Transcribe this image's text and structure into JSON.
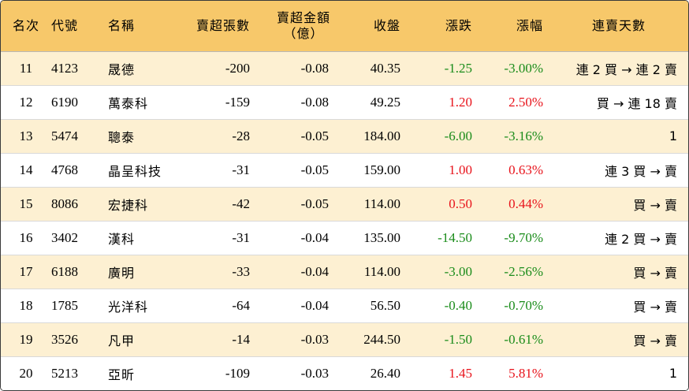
{
  "headers": {
    "rank": "名次",
    "code": "代號",
    "name": "名稱",
    "net_sell_lots": "賣超張數",
    "net_sell_amount_line1": "賣超金額",
    "net_sell_amount_line2": "（億）",
    "close": "收盤",
    "change": "漲跌",
    "change_pct": "漲幅",
    "streak": "連賣天數"
  },
  "rows": [
    {
      "rank": "11",
      "code": "4123",
      "name": "晟德",
      "lots": "-200",
      "amount": "-0.08",
      "close": "40.35",
      "change": "-1.25",
      "pct": "-3.00%",
      "dir": "down",
      "streak": "連 2 買 → 連 2 賣"
    },
    {
      "rank": "12",
      "code": "6190",
      "name": "萬泰科",
      "lots": "-159",
      "amount": "-0.08",
      "close": "49.25",
      "change": "1.20",
      "pct": "2.50%",
      "dir": "up",
      "streak": "買 → 連 18 賣"
    },
    {
      "rank": "13",
      "code": "5474",
      "name": "聰泰",
      "lots": "-28",
      "amount": "-0.05",
      "close": "184.00",
      "change": "-6.00",
      "pct": "-3.16%",
      "dir": "down",
      "streak": "1"
    },
    {
      "rank": "14",
      "code": "4768",
      "name": "晶呈科技",
      "lots": "-31",
      "amount": "-0.05",
      "close": "159.00",
      "change": "1.00",
      "pct": "0.63%",
      "dir": "up",
      "streak": "連 3 買 → 賣"
    },
    {
      "rank": "15",
      "code": "8086",
      "name": "宏捷科",
      "lots": "-42",
      "amount": "-0.05",
      "close": "114.00",
      "change": "0.50",
      "pct": "0.44%",
      "dir": "up",
      "streak": "買 → 賣"
    },
    {
      "rank": "16",
      "code": "3402",
      "name": "漢科",
      "lots": "-31",
      "amount": "-0.04",
      "close": "135.00",
      "change": "-14.50",
      "pct": "-9.70%",
      "dir": "down",
      "streak": "連 2 買 → 賣"
    },
    {
      "rank": "17",
      "code": "6188",
      "name": "廣明",
      "lots": "-33",
      "amount": "-0.04",
      "close": "114.00",
      "change": "-3.00",
      "pct": "-2.56%",
      "dir": "down",
      "streak": "買 → 賣"
    },
    {
      "rank": "18",
      "code": "1785",
      "name": "光洋科",
      "lots": "-64",
      "amount": "-0.04",
      "close": "56.50",
      "change": "-0.40",
      "pct": "-0.70%",
      "dir": "down",
      "streak": "買 → 賣"
    },
    {
      "rank": "19",
      "code": "3526",
      "name": "凡甲",
      "lots": "-14",
      "amount": "-0.03",
      "close": "244.50",
      "change": "-1.50",
      "pct": "-0.61%",
      "dir": "down",
      "streak": "買 → 賣"
    },
    {
      "rank": "20",
      "code": "5213",
      "name": "亞昕",
      "lots": "-109",
      "amount": "-0.03",
      "close": "26.40",
      "change": "1.45",
      "pct": "5.81%",
      "dir": "up",
      "streak": "1"
    }
  ],
  "colors": {
    "header_bg": "#f7c86a",
    "odd_row_bg": "#fdf0d2",
    "up": "#e8131b",
    "down": "#1a8c1a"
  }
}
